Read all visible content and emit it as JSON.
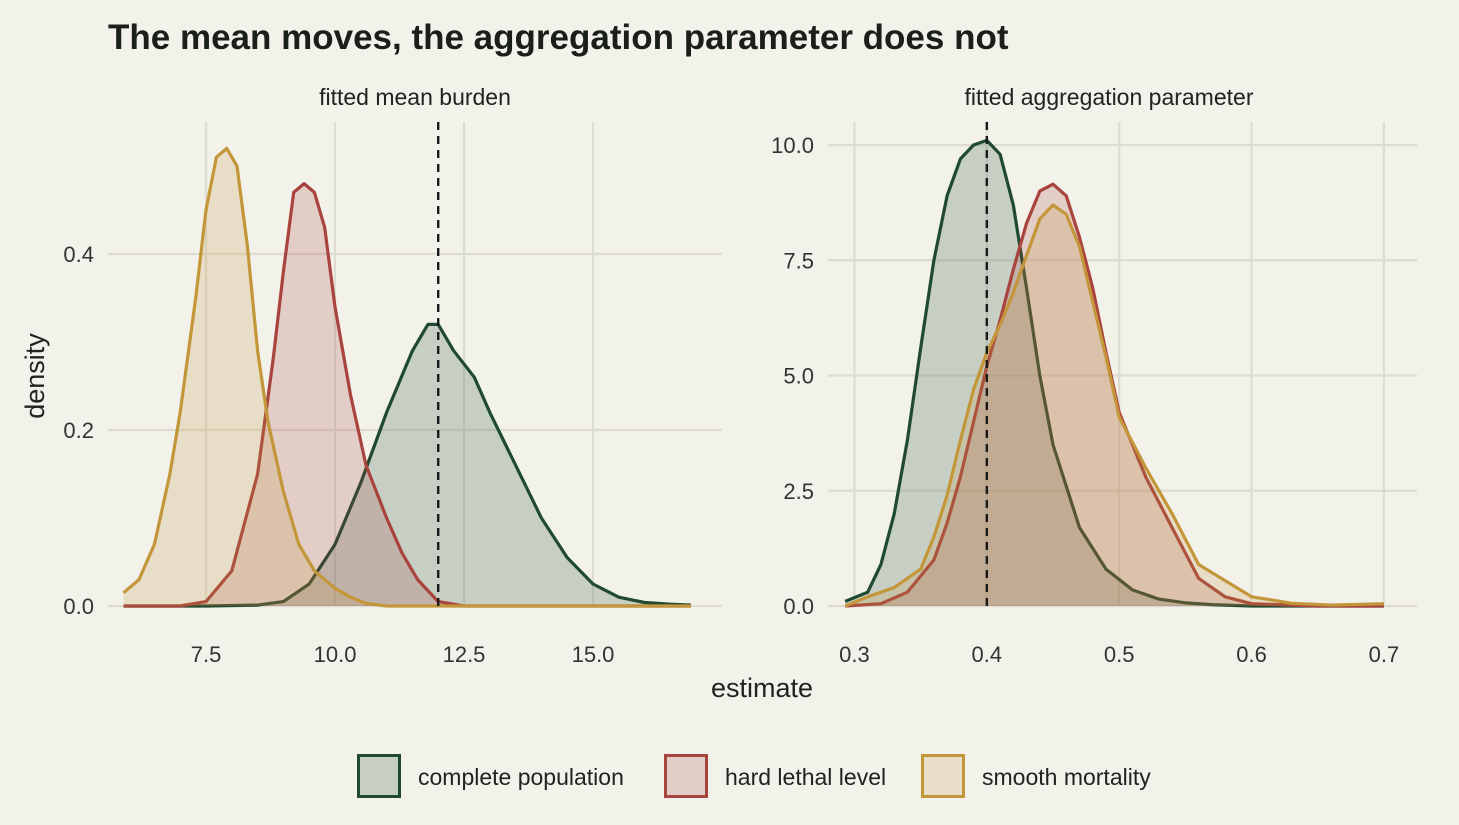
{
  "colors": {
    "background": "#f2f1ea",
    "complete": "#1f4a30",
    "hard": "#a8433e",
    "smooth": "#c4963a"
  },
  "chart_data": {
    "type": "area",
    "title": "The mean moves, the aggregation parameter does not",
    "xlabel": "estimate",
    "ylabel": "density",
    "legend": {
      "placement": "bottom",
      "items": [
        {
          "key": "complete",
          "label": "complete population"
        },
        {
          "key": "hard",
          "label": "hard lethal level"
        },
        {
          "key": "smooth",
          "label": "smooth mortality"
        }
      ]
    },
    "panels": [
      {
        "strip": "fitted mean burden",
        "xlim": [
          5.6,
          17.5
        ],
        "ylim": [
          0,
          0.55
        ],
        "xticks": [
          7.5,
          10.0,
          12.5,
          15.0
        ],
        "xtick_labels": [
          "7.5",
          "10.0",
          "12.5",
          "15.0"
        ],
        "yticks": [
          0,
          0.2,
          0.4
        ],
        "ytick_labels": [
          "0.0",
          "0.2",
          "0.4"
        ],
        "reference_line": 12,
        "series": [
          {
            "key": "complete",
            "x": [
              5.9,
              7.5,
              8.5,
              9.0,
              9.5,
              10.0,
              10.5,
              11.0,
              11.5,
              11.8,
              12.0,
              12.3,
              12.7,
              13.0,
              13.5,
              14.0,
              14.5,
              15.0,
              15.5,
              16.0,
              16.5,
              16.9
            ],
            "y": [
              0,
              0,
              0.001,
              0.005,
              0.025,
              0.07,
              0.14,
              0.22,
              0.29,
              0.32,
              0.32,
              0.29,
              0.26,
              0.22,
              0.16,
              0.1,
              0.055,
              0.025,
              0.01,
              0.004,
              0.002,
              0.001
            ]
          },
          {
            "key": "hard",
            "x": [
              5.9,
              7.0,
              7.5,
              8.0,
              8.5,
              8.8,
              9.0,
              9.2,
              9.4,
              9.6,
              9.8,
              10.0,
              10.3,
              10.6,
              11.0,
              11.3,
              11.6,
              12.0,
              12.5,
              16.9
            ],
            "y": [
              0,
              0,
              0.005,
              0.04,
              0.15,
              0.28,
              0.38,
              0.47,
              0.48,
              0.47,
              0.43,
              0.34,
              0.24,
              0.16,
              0.1,
              0.06,
              0.03,
              0.005,
              0,
              0
            ]
          },
          {
            "key": "smooth",
            "x": [
              5.9,
              6.2,
              6.5,
              6.8,
              7.0,
              7.3,
              7.5,
              7.7,
              7.9,
              8.1,
              8.3,
              8.5,
              8.7,
              9.0,
              9.3,
              9.6,
              10.0,
              10.3,
              10.6,
              11.0,
              16.9
            ],
            "y": [
              0.015,
              0.03,
              0.07,
              0.15,
              0.22,
              0.35,
              0.45,
              0.51,
              0.52,
              0.5,
              0.41,
              0.29,
              0.21,
              0.13,
              0.07,
              0.04,
              0.02,
              0.01,
              0.003,
              0,
              0
            ]
          }
        ]
      },
      {
        "strip": "fitted aggregation parameter",
        "xlim": [
          0.28,
          0.725
        ],
        "ylim": [
          0,
          10.5
        ],
        "xticks": [
          0.3,
          0.4,
          0.5,
          0.6,
          0.7
        ],
        "xtick_labels": [
          "0.3",
          "0.4",
          "0.5",
          "0.6",
          "0.7"
        ],
        "yticks": [
          0,
          2.5,
          5.0,
          7.5,
          10.0
        ],
        "ytick_labels": [
          "0.0",
          "2.5",
          "5.0",
          "7.5",
          "10.0"
        ],
        "reference_line": 0.4,
        "series": [
          {
            "key": "complete",
            "x": [
              0.293,
              0.31,
              0.32,
              0.33,
              0.34,
              0.35,
              0.36,
              0.37,
              0.38,
              0.39,
              0.4,
              0.41,
              0.42,
              0.43,
              0.44,
              0.45,
              0.47,
              0.49,
              0.51,
              0.53,
              0.55,
              0.57,
              0.6,
              0.7
            ],
            "y": [
              0.1,
              0.3,
              0.9,
              2.0,
              3.6,
              5.6,
              7.5,
              8.9,
              9.7,
              10.0,
              10.1,
              9.8,
              8.7,
              6.9,
              5.0,
              3.5,
              1.7,
              0.8,
              0.35,
              0.15,
              0.07,
              0.03,
              0,
              0
            ]
          },
          {
            "key": "hard",
            "x": [
              0.293,
              0.32,
              0.34,
              0.36,
              0.37,
              0.38,
              0.39,
              0.4,
              0.41,
              0.42,
              0.43,
              0.44,
              0.45,
              0.46,
              0.47,
              0.48,
              0.49,
              0.5,
              0.52,
              0.54,
              0.56,
              0.58,
              0.6,
              0.65,
              0.7
            ],
            "y": [
              0,
              0.05,
              0.3,
              1.0,
              1.8,
              2.8,
              4.0,
              5.2,
              6.2,
              7.3,
              8.3,
              9.0,
              9.15,
              8.9,
              8.0,
              6.9,
              5.5,
              4.2,
              2.8,
              1.7,
              0.6,
              0.2,
              0.05,
              0,
              0
            ]
          },
          {
            "key": "smooth",
            "x": [
              0.293,
              0.31,
              0.33,
              0.35,
              0.36,
              0.37,
              0.38,
              0.39,
              0.4,
              0.41,
              0.42,
              0.43,
              0.44,
              0.45,
              0.46,
              0.47,
              0.48,
              0.49,
              0.5,
              0.52,
              0.54,
              0.56,
              0.58,
              0.6,
              0.63,
              0.66,
              0.7
            ],
            "y": [
              0,
              0.2,
              0.4,
              0.8,
              1.5,
              2.4,
              3.6,
              4.7,
              5.5,
              6.1,
              6.8,
              7.6,
              8.4,
              8.7,
              8.5,
              7.8,
              6.6,
              5.4,
              4.1,
              3.0,
              2.0,
              0.9,
              0.55,
              0.2,
              0.06,
              0.02,
              0.05
            ]
          }
        ]
      }
    ]
  }
}
